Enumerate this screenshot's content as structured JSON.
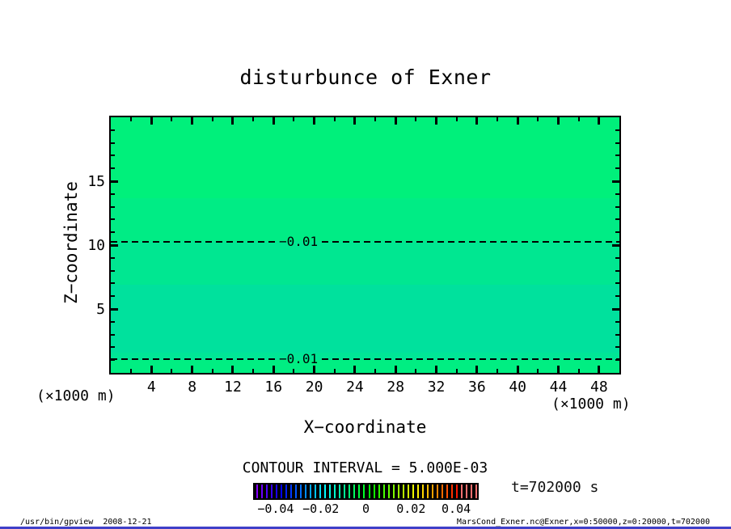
{
  "title": "disturbunce of Exner",
  "chart_data": {
    "type": "heatmap",
    "title": "disturbunce of Exner",
    "xlabel": "X−coordinate",
    "ylabel": "Z−coordinate",
    "x_unit": "(×1000 m)",
    "y_unit": "(×1000 m)",
    "xlim": [
      0,
      50
    ],
    "ylim": [
      0,
      20
    ],
    "x_major_ticks": [
      4,
      8,
      12,
      16,
      20,
      24,
      28,
      32,
      36,
      40,
      44,
      48
    ],
    "x_minor_step": 2,
    "y_major_ticks": [
      5,
      10,
      15
    ],
    "y_minor_step": 1,
    "grid": false,
    "contour_interval_label": "CONTOUR INTERVAL = 5.000E-03",
    "contour_interval": 0.005,
    "contours": [
      {
        "value": -0.01,
        "label": "−0.01",
        "z": 10.25
      },
      {
        "value": -0.01,
        "label": "−0.01",
        "z": 1.05
      }
    ],
    "fill_bands": [
      {
        "z_top": 20.0,
        "z_bottom": 13.65,
        "color": "#00f07b"
      },
      {
        "z_top": 13.65,
        "z_bottom": 10.3,
        "color": "#00ec85"
      },
      {
        "z_top": 10.3,
        "z_bottom": 6.9,
        "color": "#00e791"
      },
      {
        "z_top": 6.9,
        "z_bottom": 1.6,
        "color": "#00e19d"
      },
      {
        "z_top": 1.6,
        "z_bottom": 1.0,
        "color": "#00e696"
      },
      {
        "z_top": 1.0,
        "z_bottom": 0.0,
        "color": "#00ee82"
      }
    ],
    "colorbar": {
      "min": -0.05,
      "max": 0.05,
      "tick_values": [
        -0.04,
        -0.02,
        0,
        0.02,
        0.04
      ],
      "tick_labels": [
        "−0.04",
        "−0.02",
        "0",
        "0.02",
        "0.04"
      ],
      "style": "striped-rainbow-on-black",
      "stripes": 46,
      "hue_start": 272,
      "hue_end": 0,
      "pink_tail_fraction": 0.93,
      "pink_color_lightness": 72
    },
    "annotations": {
      "time_label": "t=702000 s"
    }
  },
  "footer": {
    "left": "/usr/bin/gpview  2008-12-21",
    "right": "MarsCond_Exner.nc@Exner,x=0:50000,z=0:20000,t=702000"
  },
  "window": {
    "bottom_border_color": "#3f3fc8"
  }
}
